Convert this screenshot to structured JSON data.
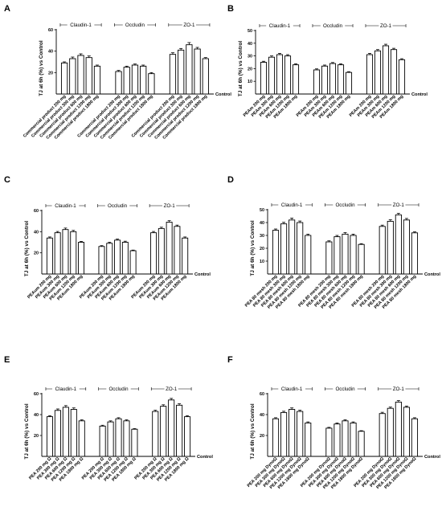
{
  "chart_data": [
    {
      "panel": "A",
      "type": "bar",
      "ylabel": "TJ at 6h (%) vs Control",
      "xlabel": "Control",
      "ylim": [
        0,
        60
      ],
      "yticks": [
        20,
        40,
        60
      ],
      "groups": [
        "Claudin-1",
        "Occludin",
        "ZO-1"
      ],
      "categories": [
        "Commercial product 200 mg",
        "Commercial product 300 mg",
        "Commercial product 600 mg",
        "Commercial product 1200 mg",
        "Commercial product 1800 mg",
        "Commercial product 200 mg",
        "Commercial product 300 mg",
        "Commercial product 600 mg",
        "Commercial product 1200 mg",
        "Commercial product 1800 mg",
        "Commercial product 200 mg",
        "Commercial product 300 mg",
        "Commercial product 600 mg",
        "Commercial product 1200 mg",
        "Commercial product 1800 mg"
      ],
      "values": [
        29,
        33,
        36,
        34,
        26,
        21,
        25,
        27,
        26,
        19,
        37,
        41,
        46,
        42,
        33
      ],
      "errors": [
        1,
        1.5,
        1.5,
        1.5,
        1,
        1,
        1,
        1,
        1,
        1,
        1.5,
        1.5,
        2,
        1.5,
        1
      ]
    },
    {
      "panel": "B",
      "type": "bar",
      "ylabel": "TJ at 6h (%) vs Control",
      "xlabel": "Control",
      "ylim": [
        0,
        50
      ],
      "yticks": [
        10,
        20,
        30,
        40,
        50
      ],
      "groups": [
        "Claudin-1",
        "Occludin",
        "ZO-1"
      ],
      "categories": [
        "PEAm 200 mg",
        "PEAm 300 mg",
        "PEAm 600 mg",
        "PEAm 1200 mg",
        "PEAm 1800 mg",
        "PEAm 200 mg",
        "PEAm 300 mg",
        "PEAm 600 mg",
        "PEAm 1200 mg",
        "PEAm 1800 mg",
        "PEAm 200 mg",
        "PEAm 300 mg",
        "PEAm 600 mg",
        "PEAm 1200 mg",
        "PEAm 1800 mg"
      ],
      "values": [
        25,
        29,
        31,
        30,
        23,
        19,
        22,
        24,
        23,
        17,
        31,
        34,
        38,
        35,
        27
      ],
      "errors": [
        0.8,
        1,
        1,
        1,
        0.8,
        0.8,
        0.8,
        0.8,
        0.8,
        0.6,
        1,
        1,
        1.2,
        1,
        0.8
      ]
    },
    {
      "panel": "C",
      "type": "bar",
      "ylabel": "TJ at 6h (%) vs Control",
      "xlabel": "Control",
      "ylim": [
        0,
        60
      ],
      "yticks": [
        20,
        40,
        60
      ],
      "groups": [
        "Claudin-1",
        "Occludin",
        "ZO-1"
      ],
      "categories": [
        "PEAum 200 mg",
        "PEAum 300 mg",
        "PEAum 600 mg",
        "PEAum 1200 mg",
        "PEAum 1800 mg",
        "PEAum 200 mg",
        "PEAum 300 mg",
        "PEAum 600 mg",
        "PEAum 1200 mg",
        "PEAum 1800 mg",
        "PEAum 200 mg",
        "PEAum 300 mg",
        "PEAum 600 mg",
        "PEAum 1200 mg",
        "PEAum 1800 mg"
      ],
      "values": [
        34,
        39,
        42,
        40,
        30,
        26,
        29,
        32,
        30,
        22,
        39,
        43,
        49,
        45,
        34
      ],
      "errors": [
        1,
        1.2,
        1.4,
        1.2,
        0.8,
        0.8,
        1,
        1,
        1,
        0.6,
        1.2,
        1.2,
        1.4,
        1.2,
        1
      ]
    },
    {
      "panel": "D",
      "type": "bar",
      "ylabel": "TJ at 6h (%) vs Control",
      "xlabel": "Control",
      "ylim": [
        0,
        50
      ],
      "yticks": [
        10,
        20,
        30,
        40,
        50
      ],
      "groups": [
        "Claudin-1",
        "Occludin",
        "ZO-1"
      ],
      "categories": [
        "PEA 80 mesh 200 mg",
        "PEA 80 mesh 300 mg",
        "PEA 80 mesh 600 mg",
        "PEA 80 mesh 1200 mg",
        "PEA 80 mesh 1800 mg",
        "PEA 80 mesh 200 mg",
        "PEA 80 mesh 300 mg",
        "PEA 80 mesh 600 mg",
        "PEA 80 mesh 1200 mg",
        "PEA 80 mesh 1800 mg",
        "PEA 80 mesh 200 mg",
        "PEA 80 mesh 300 mg",
        "PEA 80 mesh 600 mg",
        "PEA 80 mesh 1200 mg",
        "PEA 80 mesh 1800 mg"
      ],
      "values": [
        34,
        39,
        42,
        40,
        30,
        25,
        29,
        31,
        30,
        23,
        37,
        41,
        46,
        42,
        32
      ],
      "errors": [
        1,
        1.2,
        1.5,
        1.2,
        1,
        0.8,
        1,
        1.2,
        1,
        0.6,
        1,
        1.2,
        1.2,
        1.2,
        0.8
      ]
    },
    {
      "panel": "E",
      "type": "bar",
      "ylabel": "TJ at 6h (%) vs Control",
      "xlabel": "Control",
      "ylim": [
        0,
        60
      ],
      "yticks": [
        20,
        40,
        60
      ],
      "groups": [
        "Claudin-1",
        "Occludin",
        "ZO-1"
      ],
      "categories": [
        "PEA 200 mg Ω",
        "PEA 300 mg Ω",
        "PEA 600 mg Ω",
        "PEA 1200 mg Ω",
        "PEA 1800 mg Ω",
        "PEA 200 mg Ω",
        "PEA 300 mg Ω",
        "PEA 600 mg Ω",
        "PEA 1200 mg Ω",
        "PEA 1800 mg Ω",
        "PEA 200 mg Ω",
        "PEA 300 mg Ω",
        "PEA 600 mg Ω",
        "PEA 1200 mg Ω",
        "PEA 1800 mg Ω"
      ],
      "values": [
        38,
        44,
        47,
        45,
        34,
        29,
        33,
        36,
        34,
        26,
        43,
        48,
        54,
        49,
        38
      ],
      "errors": [
        1,
        1.4,
        1.6,
        1.4,
        1,
        0.8,
        1,
        1,
        1,
        0.6,
        1.2,
        1.4,
        1.5,
        1.4,
        1
      ]
    },
    {
      "panel": "F",
      "type": "bar",
      "ylabel": "TJ at 6h (%) vs Control",
      "xlabel": "Control",
      "ylim": [
        0,
        60
      ],
      "yticks": [
        20,
        40,
        60
      ],
      "groups": [
        "Claudin-1",
        "Occludin",
        "ZO-1"
      ],
      "categories": [
        "PEA 200 mg DynoΩ",
        "PEA 300 mg DynoΩ",
        "PEA 600 mg DynoΩ",
        "PEA 1200 mg DynoΩ",
        "PEA 1800 mg DynoΩ",
        "PEA 200 mg DynoΩ",
        "PEA 300 mg DynoΩ",
        "PEA 600 mg DynoΩ",
        "PEA 1200 mg DynoΩ",
        "PEA 1800 mg DynoΩ",
        "PEA 200 mg DynoΩ",
        "PEA 300 mg DynoΩ",
        "PEA 600 mg DynoΩ",
        "PEA 1200 mg DynoΩ",
        "PEA 1800 mg DynoΩ"
      ],
      "values": [
        36,
        42,
        45,
        43,
        32,
        27,
        31,
        34,
        32,
        24,
        41,
        46,
        52,
        47,
        36
      ],
      "errors": [
        1,
        1.2,
        1.4,
        1.2,
        1,
        0.8,
        1,
        1,
        1,
        0.6,
        1.2,
        1.2,
        1.4,
        1.2,
        1
      ]
    }
  ]
}
